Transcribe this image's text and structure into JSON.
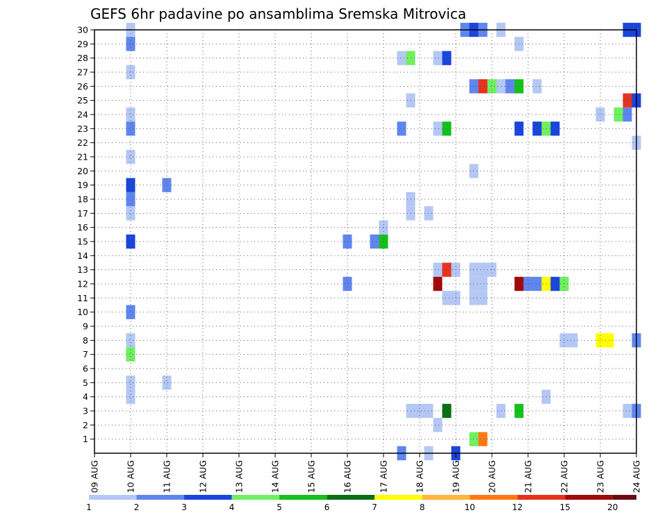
{
  "chart_data": {
    "type": "heatmap",
    "title": "GEFS 6hr padavine po ansamblima Sremska Mitrovica",
    "xlabel": "",
    "ylabel": "",
    "x_tick_labels": [
      "09 AUG",
      "10 AUG",
      "11 AUG",
      "12 AUG",
      "13 AUG",
      "14 AUG",
      "15 AUG",
      "16 AUG",
      "17 AUG",
      "18 AUG",
      "19 AUG",
      "20 AUG",
      "21 AUG",
      "22 AUG",
      "23 AUG",
      "24 AUG"
    ],
    "x_range_days": [
      0,
      15
    ],
    "y_tick_labels": [
      1,
      2,
      3,
      4,
      5,
      6,
      7,
      8,
      9,
      10,
      11,
      12,
      13,
      14,
      15,
      16,
      17,
      18,
      19,
      20,
      21,
      22,
      23,
      24,
      25,
      26,
      27,
      28,
      29,
      30
    ],
    "y_range": [
      0,
      30
    ],
    "grid": true,
    "colorbar": {
      "labels": [
        "1",
        "2",
        "3",
        "4",
        "5",
        "6",
        "7",
        "8",
        "10",
        "12",
        "15",
        "20"
      ],
      "colors": [
        "#b4c7f5",
        "#5f86ef",
        "#1a44dc",
        "#6ff05e",
        "#14c11a",
        "#0a6e14",
        "#ffff00",
        "#ffb43c",
        "#ff7814",
        "#e6321e",
        "#a00a0a",
        "#6e0a14"
      ]
    },
    "cells": [
      {
        "day": 1.0,
        "member": 30,
        "value": 1
      },
      {
        "day": 1.0,
        "member": 29,
        "value": 2
      },
      {
        "day": 1.0,
        "member": 27,
        "value": 1
      },
      {
        "day": 1.0,
        "member": 24,
        "value": 1
      },
      {
        "day": 1.0,
        "member": 23,
        "value": 2
      },
      {
        "day": 1.0,
        "member": 21,
        "value": 1
      },
      {
        "day": 1.0,
        "member": 19,
        "value": 3
      },
      {
        "day": 1.0,
        "member": 18,
        "value": 2
      },
      {
        "day": 1.0,
        "member": 17,
        "value": 1
      },
      {
        "day": 1.0,
        "member": 15,
        "value": 3
      },
      {
        "day": 1.0,
        "member": 10,
        "value": 2
      },
      {
        "day": 1.0,
        "member": 8,
        "value": 1
      },
      {
        "day": 1.0,
        "member": 7,
        "value": 4
      },
      {
        "day": 1.0,
        "member": 5,
        "value": 1
      },
      {
        "day": 1.0,
        "member": 4,
        "value": 1
      },
      {
        "day": 2.0,
        "member": 19,
        "value": 2
      },
      {
        "day": 2.0,
        "member": 5,
        "value": 1
      },
      {
        "day": 7.0,
        "member": 15,
        "value": 2
      },
      {
        "day": 7.0,
        "member": 12,
        "value": 2
      },
      {
        "day": 7.75,
        "member": 15,
        "value": 2
      },
      {
        "day": 8.0,
        "member": 15,
        "value": 5
      },
      {
        "day": 8.0,
        "member": 16,
        "value": 1
      },
      {
        "day": 8.5,
        "member": 28,
        "value": 1
      },
      {
        "day": 8.75,
        "member": 28,
        "value": 4
      },
      {
        "day": 8.75,
        "member": 25,
        "value": 1
      },
      {
        "day": 8.5,
        "member": 23,
        "value": 2
      },
      {
        "day": 8.75,
        "member": 18,
        "value": 1
      },
      {
        "day": 8.75,
        "member": 17,
        "value": 1
      },
      {
        "day": 9.25,
        "member": 17,
        "value": 1
      },
      {
        "day": 8.75,
        "member": 3,
        "value": 1
      },
      {
        "day": 9.0,
        "member": 3,
        "value": 1
      },
      {
        "day": 9.25,
        "member": 3,
        "value": 1
      },
      {
        "day": 9.25,
        "member": 0,
        "value": 1
      },
      {
        "day": 8.5,
        "member": 0,
        "value": 2
      },
      {
        "day": 9.5,
        "member": 28,
        "value": 1
      },
      {
        "day": 9.75,
        "member": 28,
        "value": 3
      },
      {
        "day": 9.5,
        "member": 23,
        "value": 1
      },
      {
        "day": 9.75,
        "member": 23,
        "value": 5
      },
      {
        "day": 9.5,
        "member": 13,
        "value": 1
      },
      {
        "day": 9.75,
        "member": 13,
        "value": 14
      },
      {
        "day": 10.0,
        "member": 13,
        "value": 1
      },
      {
        "day": 9.5,
        "member": 12,
        "value": 17
      },
      {
        "day": 9.75,
        "member": 11,
        "value": 1
      },
      {
        "day": 10.0,
        "member": 11,
        "value": 1
      },
      {
        "day": 9.5,
        "member": 2,
        "value": 1
      },
      {
        "day": 9.75,
        "member": 3,
        "value": 6
      },
      {
        "day": 10.25,
        "member": 30,
        "value": 2
      },
      {
        "day": 10.5,
        "member": 30,
        "value": 3
      },
      {
        "day": 10.5,
        "member": 20,
        "value": 1
      },
      {
        "day": 10.0,
        "member": 0,
        "value": 3
      },
      {
        "day": 10.75,
        "member": 30,
        "value": 2
      },
      {
        "day": 11.25,
        "member": 30,
        "value": 1
      },
      {
        "day": 11.75,
        "member": 29,
        "value": 1
      },
      {
        "day": 10.5,
        "member": 26,
        "value": 2
      },
      {
        "day": 10.75,
        "member": 26,
        "value": 14
      },
      {
        "day": 11.0,
        "member": 26,
        "value": 4
      },
      {
        "day": 11.25,
        "member": 26,
        "value": 1
      },
      {
        "day": 11.5,
        "member": 26,
        "value": 2
      },
      {
        "day": 11.75,
        "member": 26,
        "value": 5
      },
      {
        "day": 12.25,
        "member": 26,
        "value": 1
      },
      {
        "day": 10.5,
        "member": 13,
        "value": 1
      },
      {
        "day": 10.75,
        "member": 13,
        "value": 1
      },
      {
        "day": 11.0,
        "member": 13,
        "value": 1
      },
      {
        "day": 10.5,
        "member": 12,
        "value": 1
      },
      {
        "day": 10.75,
        "member": 12,
        "value": 1
      },
      {
        "day": 10.5,
        "member": 11,
        "value": 1
      },
      {
        "day": 10.75,
        "member": 11,
        "value": 1
      },
      {
        "day": 10.5,
        "member": 1,
        "value": 4
      },
      {
        "day": 10.75,
        "member": 1,
        "value": 11
      },
      {
        "day": 11.25,
        "member": 3,
        "value": 1
      },
      {
        "day": 11.75,
        "member": 3,
        "value": 5
      },
      {
        "day": 11.75,
        "member": 23,
        "value": 3
      },
      {
        "day": 12.25,
        "member": 23,
        "value": 3
      },
      {
        "day": 12.5,
        "member": 23,
        "value": 4
      },
      {
        "day": 12.75,
        "member": 23,
        "value": 3
      },
      {
        "day": 11.75,
        "member": 12,
        "value": 17
      },
      {
        "day": 12.0,
        "member": 12,
        "value": 2
      },
      {
        "day": 12.25,
        "member": 12,
        "value": 2
      },
      {
        "day": 12.5,
        "member": 12,
        "value": 7
      },
      {
        "day": 12.75,
        "member": 12,
        "value": 3
      },
      {
        "day": 13.0,
        "member": 12,
        "value": 4
      },
      {
        "day": 12.5,
        "member": 4,
        "value": 1
      },
      {
        "day": 13.0,
        "member": 8,
        "value": 1
      },
      {
        "day": 13.25,
        "member": 8,
        "value": 1
      },
      {
        "day": 14.0,
        "member": 8,
        "value": 7
      },
      {
        "day": 14.25,
        "member": 8,
        "value": 7
      },
      {
        "day": 15.0,
        "member": 8,
        "value": 2
      },
      {
        "day": 14.0,
        "member": 24,
        "value": 1
      },
      {
        "day": 14.5,
        "member": 24,
        "value": 4
      },
      {
        "day": 14.75,
        "member": 24,
        "value": 2
      },
      {
        "day": 14.75,
        "member": 25,
        "value": 14
      },
      {
        "day": 15.0,
        "member": 25,
        "value": 3
      },
      {
        "day": 15.0,
        "member": 22,
        "value": 1
      },
      {
        "day": 15.0,
        "member": 30,
        "value": 3
      },
      {
        "day": 14.75,
        "member": 30,
        "value": 3
      },
      {
        "day": 14.75,
        "member": 3,
        "value": 1
      },
      {
        "day": 15.0,
        "member": 3,
        "value": 2
      }
    ]
  }
}
